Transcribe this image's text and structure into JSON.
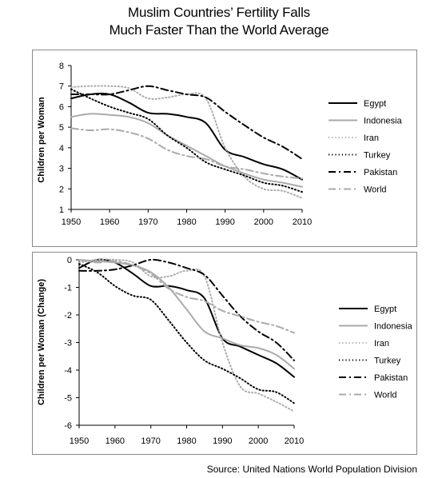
{
  "title_line1": "Muslim Countries’ Fertility Falls",
  "title_line2": "Much Faster Than the World Average",
  "source": "Source: United Nations World Population Division",
  "chart_data": [
    {
      "type": "line",
      "ylabel": "Children per Woman",
      "xlabel": "",
      "xlim": [
        1950,
        2010
      ],
      "ylim": [
        1,
        8
      ],
      "xticks": [
        "1950",
        "1960",
        "1970",
        "1980",
        "1990",
        "2000",
        "2010"
      ],
      "yticks": [
        "1",
        "2",
        "3",
        "4",
        "5",
        "6",
        "7",
        "8"
      ],
      "grid": false,
      "legend": "right",
      "x": [
        1950,
        1955,
        1960,
        1965,
        1970,
        1975,
        1980,
        1985,
        1990,
        1995,
        2000,
        2005,
        2010
      ],
      "series": [
        {
          "name": "Egypt",
          "color": "#000000",
          "dash": "solid",
          "values": [
            6.4,
            6.6,
            6.6,
            6.2,
            5.7,
            5.65,
            5.5,
            5.2,
            3.9,
            3.55,
            3.2,
            2.95,
            2.45
          ]
        },
        {
          "name": "Indonesia",
          "color": "#aaaaaa",
          "dash": "solid",
          "values": [
            5.5,
            5.65,
            5.6,
            5.5,
            5.2,
            4.6,
            4.1,
            3.6,
            3.1,
            2.75,
            2.45,
            2.3,
            2.1
          ]
        },
        {
          "name": "Iran",
          "color": "#aaaaaa",
          "dash": "dotted",
          "values": [
            6.95,
            7.0,
            7.0,
            6.9,
            6.4,
            6.45,
            6.6,
            6.4,
            4.0,
            2.6,
            2.0,
            1.9,
            1.55
          ]
        },
        {
          "name": "Turkey",
          "color": "#000000",
          "dash": "dotted",
          "values": [
            6.85,
            6.4,
            6.0,
            5.7,
            5.4,
            4.6,
            4.0,
            3.3,
            2.95,
            2.65,
            2.3,
            2.15,
            1.85
          ]
        },
        {
          "name": "Pakistan",
          "color": "#000000",
          "dash": "dashdot",
          "values": [
            6.6,
            6.6,
            6.6,
            6.8,
            7.0,
            6.8,
            6.6,
            6.45,
            5.75,
            5.1,
            4.5,
            4.05,
            3.45
          ]
        },
        {
          "name": "World",
          "color": "#aaaaaa",
          "dash": "dashdot",
          "values": [
            4.95,
            4.85,
            4.9,
            4.75,
            4.45,
            3.9,
            3.6,
            3.45,
            3.1,
            2.95,
            2.75,
            2.6,
            2.5
          ]
        }
      ]
    },
    {
      "type": "line",
      "ylabel": "Children per Woman (Change)",
      "xlabel": "",
      "xlim": [
        1950,
        2010
      ],
      "ylim": [
        -6,
        0
      ],
      "xticks": [
        "1950",
        "1960",
        "1970",
        "1980",
        "1990",
        "2000",
        "2010"
      ],
      "yticks": [
        "0",
        "-1",
        "-2",
        "-3",
        "-4",
        "-5",
        "-6"
      ],
      "grid": false,
      "legend": "right",
      "x": [
        1950,
        1955,
        1960,
        1965,
        1970,
        1975,
        1980,
        1985,
        1990,
        1995,
        2000,
        2005,
        2010
      ],
      "series": [
        {
          "name": "Egypt",
          "color": "#000000",
          "dash": "solid",
          "values": [
            -0.3,
            0.0,
            -0.1,
            -0.5,
            -0.95,
            -0.95,
            -1.1,
            -1.4,
            -2.85,
            -3.15,
            -3.45,
            -3.75,
            -4.25
          ]
        },
        {
          "name": "Indonesia",
          "color": "#aaaaaa",
          "dash": "solid",
          "values": [
            0.0,
            -0.05,
            -0.1,
            -0.2,
            -0.45,
            -1.0,
            -1.8,
            -2.6,
            -2.85,
            -3.1,
            -3.2,
            -3.45,
            -3.95
          ]
        },
        {
          "name": "Iran",
          "color": "#aaaaaa",
          "dash": "dotted",
          "values": [
            -0.1,
            0.0,
            0.0,
            -0.1,
            -0.6,
            -0.6,
            -0.4,
            -0.6,
            -3.0,
            -4.6,
            -4.85,
            -5.15,
            -5.5
          ]
        },
        {
          "name": "Turkey",
          "color": "#000000",
          "dash": "dotted",
          "values": [
            -0.15,
            -0.45,
            -0.95,
            -1.3,
            -1.45,
            -2.2,
            -3.0,
            -3.65,
            -3.95,
            -4.3,
            -4.7,
            -4.8,
            -5.2
          ]
        },
        {
          "name": "Pakistan",
          "color": "#000000",
          "dash": "dashdot",
          "values": [
            -0.4,
            -0.4,
            -0.35,
            -0.2,
            0.0,
            -0.1,
            -0.3,
            -0.55,
            -1.3,
            -2.05,
            -2.6,
            -3.0,
            -3.65
          ]
        },
        {
          "name": "World",
          "color": "#aaaaaa",
          "dash": "dashdot",
          "values": [
            0.0,
            -0.1,
            -0.05,
            -0.2,
            -0.5,
            -1.05,
            -1.35,
            -1.5,
            -1.85,
            -2.05,
            -2.25,
            -2.4,
            -2.65
          ]
        }
      ]
    }
  ]
}
